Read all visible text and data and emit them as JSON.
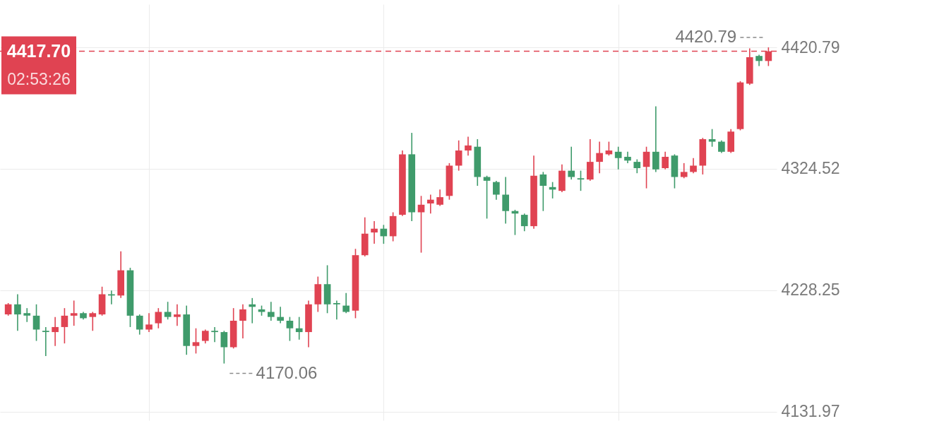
{
  "chart_data": {
    "type": "candlestick",
    "categories": [
      null,
      null,
      null,
      null,
      null,
      null,
      null,
      null,
      null,
      null,
      null,
      null,
      null,
      null,
      null,
      null,
      null,
      null,
      null,
      null,
      null,
      null,
      null,
      null,
      null,
      null,
      null,
      null,
      null,
      null,
      null,
      null,
      null,
      null,
      null,
      null,
      null,
      null,
      null,
      null,
      null,
      null,
      null,
      null,
      null,
      null,
      null,
      null,
      null,
      null,
      null,
      null,
      null,
      null,
      null,
      null,
      null,
      null,
      null,
      null,
      null,
      null,
      null,
      null,
      null,
      null,
      null,
      null,
      null,
      null,
      null,
      null,
      null,
      null,
      null,
      null,
      null,
      null,
      null,
      null,
      null,
      null
    ],
    "ohlc": [
      [
        4209,
        4218,
        4208,
        4217
      ],
      [
        4217,
        4225,
        4196,
        4209
      ],
      [
        4210,
        4214,
        4203,
        4208
      ],
      [
        4208,
        4217,
        4188,
        4197
      ],
      [
        4196,
        4199,
        4176,
        4195
      ],
      [
        4195,
        4207,
        4184,
        4199
      ],
      [
        4199,
        4214,
        4186,
        4208
      ],
      [
        4208,
        4220,
        4200,
        4210
      ],
      [
        4210,
        4211,
        4205,
        4206
      ],
      [
        4207,
        4211,
        4196,
        4210
      ],
      [
        4209,
        4231,
        4208,
        4225
      ],
      [
        4225,
        4228,
        4217,
        4224
      ],
      [
        4224,
        4259,
        4222,
        4244
      ],
      [
        4244,
        4246,
        4199,
        4208
      ],
      [
        4208,
        4209,
        4193,
        4197
      ],
      [
        4197,
        4210,
        4195,
        4201
      ],
      [
        4202,
        4214,
        4198,
        4211
      ],
      [
        4211,
        4219,
        4205,
        4207
      ],
      [
        4207,
        4217,
        4200,
        4209
      ],
      [
        4209,
        4216,
        4177,
        4184
      ],
      [
        4184,
        4198,
        4178,
        4187
      ],
      [
        4188,
        4197,
        4186,
        4196
      ],
      [
        4196,
        4199,
        4187,
        4195
      ],
      [
        4195,
        4196,
        4170.06,
        4183
      ],
      [
        4183,
        4214,
        4182,
        4204
      ],
      [
        4204,
        4217,
        4190,
        4213
      ],
      [
        4217,
        4222,
        4202,
        4215
      ],
      [
        4213,
        4216,
        4208,
        4211
      ],
      [
        4211,
        4219,
        4204,
        4207
      ],
      [
        4207,
        4215,
        4202,
        4204
      ],
      [
        4204,
        4207,
        4188,
        4198
      ],
      [
        4198,
        4207,
        4189,
        4195
      ],
      [
        4195,
        4220,
        4183,
        4217
      ],
      [
        4217,
        4239,
        4211,
        4233
      ],
      [
        4233,
        4248,
        4210,
        4217
      ],
      [
        4218,
        4220,
        4205,
        4217
      ],
      [
        4216,
        4226,
        4210,
        4211
      ],
      [
        4212,
        4261,
        4206,
        4256
      ],
      [
        4256,
        4286,
        4255,
        4273
      ],
      [
        4274,
        4283,
        4265,
        4277
      ],
      [
        4277,
        4280,
        4265,
        4271
      ],
      [
        4271,
        4290,
        4267,
        4287
      ],
      [
        4288,
        4339,
        4287,
        4336
      ],
      [
        4336,
        4353,
        4283,
        4290
      ],
      [
        4290,
        4303,
        4258,
        4296
      ],
      [
        4297,
        4304,
        4289,
        4300
      ],
      [
        4296,
        4308,
        4295,
        4302
      ],
      [
        4303,
        4329,
        4300,
        4327
      ],
      [
        4327,
        4347,
        4323,
        4339
      ],
      [
        4339,
        4350,
        4335,
        4343
      ],
      [
        4342,
        4348,
        4311,
        4318
      ],
      [
        4318,
        4319,
        4285,
        4315
      ],
      [
        4314,
        4315,
        4300,
        4304
      ],
      [
        4304,
        4318,
        4281,
        4291
      ],
      [
        4291,
        4292,
        4272,
        4289
      ],
      [
        4288,
        4289,
        4275,
        4279
      ],
      [
        4279,
        4335,
        4277,
        4319
      ],
      [
        4320,
        4322,
        4291,
        4311
      ],
      [
        4310,
        4314,
        4301,
        4308
      ],
      [
        4307,
        4328,
        4306,
        4323
      ],
      [
        4323,
        4342,
        4316,
        4318
      ],
      [
        4317,
        4323,
        4307,
        4316
      ],
      [
        4316,
        4348,
        4315,
        4330
      ],
      [
        4330,
        4346,
        4321,
        4337
      ],
      [
        4336,
        4346,
        4335,
        4339
      ],
      [
        4338,
        4342,
        4324,
        4333
      ],
      [
        4334,
        4338,
        4329,
        4331
      ],
      [
        4330,
        4332,
        4321,
        4325
      ],
      [
        4326,
        4342,
        4309,
        4338
      ],
      [
        4338,
        4374,
        4322,
        4324
      ],
      [
        4325,
        4338,
        4324,
        4334
      ],
      [
        4335,
        4336,
        4309,
        4318
      ],
      [
        4318,
        4329,
        4317,
        4322
      ],
      [
        4322,
        4333,
        4321,
        4327
      ],
      [
        4327,
        4349,
        4320,
        4348
      ],
      [
        4348,
        4356,
        4342,
        4346
      ],
      [
        4346,
        4347,
        4337,
        4338
      ],
      [
        4338,
        4356,
        4337,
        4354
      ],
      [
        4356,
        4394,
        4355,
        4393
      ],
      [
        4392,
        4420,
        4391,
        4413
      ],
      [
        4414,
        4415,
        4406,
        4410
      ],
      [
        4410,
        4420.79,
        4406,
        4417.7
      ]
    ],
    "colors": [
      "#e04352",
      "#3f9b6b",
      "#3f9b6b",
      "#3f9b6b",
      "#3f9b6b",
      "#e04352",
      "#e04352",
      "#e04352",
      "#3f9b6b",
      "#e04352",
      "#e04352",
      "#3f9b6b",
      "#e04352",
      "#3f9b6b",
      "#3f9b6b",
      "#e04352",
      "#e04352",
      "#3f9b6b",
      "#e04352",
      "#3f9b6b",
      "#e04352",
      "#e04352",
      "#3f9b6b",
      "#3f9b6b",
      "#e04352",
      "#e04352",
      "#3f9b6b",
      "#3f9b6b",
      "#3f9b6b",
      "#3f9b6b",
      "#3f9b6b",
      "#3f9b6b",
      "#e04352",
      "#e04352",
      "#3f9b6b",
      "#3f9b6b",
      "#3f9b6b",
      "#e04352",
      "#e04352",
      "#e04352",
      "#3f9b6b",
      "#e04352",
      "#e04352",
      "#3f9b6b",
      "#e04352",
      "#e04352",
      "#e04352",
      "#e04352",
      "#e04352",
      "#e04352",
      "#3f9b6b",
      "#3f9b6b",
      "#3f9b6b",
      "#3f9b6b",
      "#3f9b6b",
      "#3f9b6b",
      "#e04352",
      "#3f9b6b",
      "#3f9b6b",
      "#e04352",
      "#3f9b6b",
      "#3f9b6b",
      "#e04352",
      "#e04352",
      "#e04352",
      "#3f9b6b",
      "#3f9b6b",
      "#3f9b6b",
      "#e04352",
      "#3f9b6b",
      "#e04352",
      "#3f9b6b",
      "#e04352",
      "#e04352",
      "#e04352",
      "#3f9b6b",
      "#3f9b6b",
      "#e04352",
      "#e04352",
      "#e04352",
      "#3f9b6b",
      "#e04352"
    ],
    "ylim": [
      4125,
      4455
    ],
    "yticks": [
      4131.97,
      4228.25,
      4324.52,
      4420.79
    ],
    "grid": true,
    "ref_lines": [
      {
        "axis": "y",
        "value": 4417.7,
        "label": "4417.70",
        "color": "#e04352",
        "line_style": "dashed"
      }
    ],
    "annotations": [
      "02:53:26",
      "4420.79",
      "4170.06"
    ]
  }
}
